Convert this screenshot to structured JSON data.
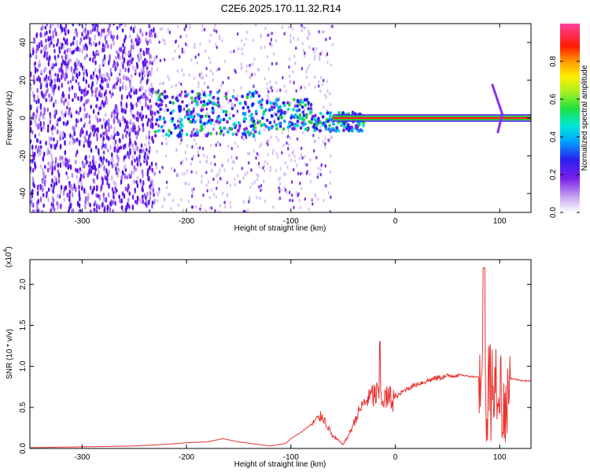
{
  "title": "C2E6.2025.170.11.32.R14",
  "colors": {
    "snr_line": "#e8322e",
    "spec_scatter": "#6a1fe0",
    "spec_light": "#c9aaf0",
    "axis": "#000000"
  },
  "colorbar": {
    "label": "Normalized spectral amplitude",
    "ticks": [
      "0.0",
      "0.2",
      "0.4",
      "0.6",
      "0.8"
    ],
    "tick_values": [
      0.0,
      0.2,
      0.4,
      0.6,
      0.8
    ],
    "range": [
      0,
      1
    ],
    "colormap": "rainbow (purple-blue-cyan-green-yellow-red-pink)"
  },
  "chart_data": [
    {
      "type": "heatmap",
      "xlabel": "Height of straight line (km)",
      "ylabel": "Frequency (Hz)",
      "xlim": [
        -350,
        130
      ],
      "ylim": [
        -50,
        50
      ],
      "xticks": [
        -300,
        -200,
        -100,
        0,
        100
      ],
      "xtick_labels": [
        "-300",
        "-200",
        "-100",
        "0",
        "100"
      ],
      "yticks": [
        -40,
        -20,
        0,
        20,
        40
      ],
      "ytick_labels": [
        "-40",
        "-20",
        "0",
        "20",
        "40"
      ],
      "features": {
        "noise_region_x": [
          -350,
          -230
        ],
        "broadband_region_x": [
          -230,
          -60
        ],
        "signal_band_freq": 0,
        "signal_band_x": [
          -60,
          130
        ],
        "feature_near_x": 95
      }
    },
    {
      "type": "line",
      "xlabel": "Height of straight line (km)",
      "ylabel": "SNR (10 * v/v)",
      "multiplier": "(x10",
      "multiplier_exp": "4",
      "xlim": [
        -350,
        130
      ],
      "ylim": [
        0,
        2.3
      ],
      "xticks": [
        -300,
        -200,
        -100,
        0,
        100
      ],
      "xtick_labels": [
        "-300",
        "-200",
        "-100",
        "0",
        "100"
      ],
      "yticks": [
        0,
        0.5,
        1.0,
        1.5,
        2.0
      ],
      "ytick_labels": [
        "0.0",
        "0.5",
        "1.0",
        "1.5",
        "2.0"
      ],
      "series": [
        {
          "x": [
            -350,
            -300,
            -250,
            -220,
            -200,
            -180,
            -165,
            -150,
            -120,
            -105,
            -100,
            -90,
            -80,
            -70,
            -60,
            -50,
            -45,
            -40,
            -35,
            -30,
            -25,
            -20,
            -15,
            -10,
            0,
            10,
            20,
            30,
            40,
            50,
            60,
            70,
            80,
            85,
            90,
            95,
            100,
            105,
            110,
            115,
            120,
            130
          ],
          "y": [
            0.01,
            0.02,
            0.03,
            0.05,
            0.07,
            0.08,
            0.12,
            0.08,
            0.03,
            0.06,
            0.12,
            0.2,
            0.3,
            0.4,
            0.15,
            0.05,
            0.15,
            0.3,
            0.45,
            0.55,
            0.62,
            0.65,
            0.65,
            0.6,
            0.62,
            0.72,
            0.78,
            0.82,
            0.86,
            0.88,
            0.9,
            0.88,
            0.87,
            0.9,
            0.85,
            0.9,
            0.86,
            0.6,
            0.85,
            0.84,
            0.83,
            0.82
          ],
          "spike_peak_near_x": 85,
          "spike_peak_value": 2.2,
          "spike_secondary_near_x": -15,
          "spike_secondary_value": 1.3
        }
      ]
    }
  ]
}
